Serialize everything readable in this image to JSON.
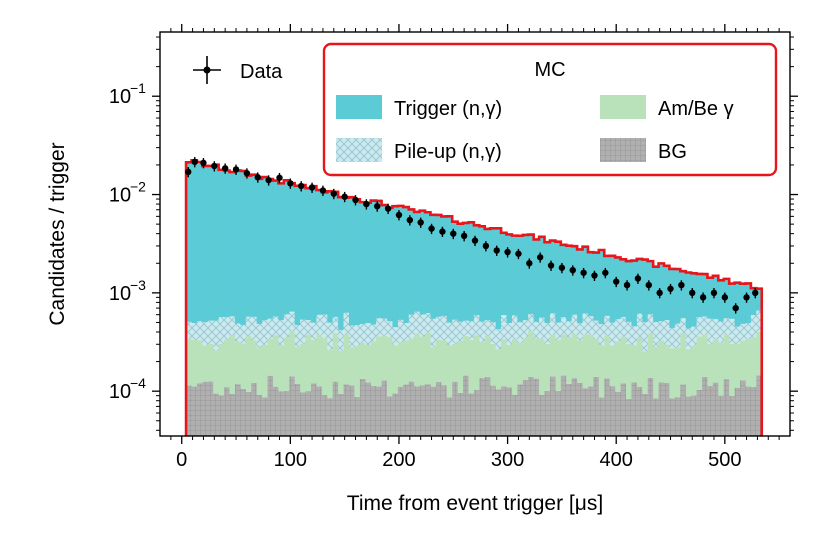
{
  "chart_data": {
    "type": "histogram",
    "xlabel": "Time from event trigger [μs]",
    "ylabel": "Candidates / trigger",
    "xlim": [
      -20,
      560
    ],
    "ylim": [
      3.5e-05,
      0.45
    ],
    "yscale": "log",
    "x_ticks": [
      0,
      100,
      200,
      300,
      400,
      500
    ],
    "x_tick_labels": [
      "0",
      "100",
      "200",
      "300",
      "400",
      "500"
    ],
    "y_ticks": [
      0.0001,
      0.001,
      0.01,
      0.1
    ],
    "y_tick_labels": [
      "10",
      "10",
      "10",
      "10"
    ],
    "y_tick_exponents": [
      "−4",
      "−3",
      "−2",
      "−1"
    ],
    "bin_edges_range": [
      4,
      534
    ],
    "bin_width": 5,
    "stack_order": [
      "BG",
      "Am/Be γ",
      "Pile-up (n,γ)",
      "Trigger (n,γ)"
    ],
    "series": [
      {
        "name": "BG",
        "color": "#b0b0b0",
        "hatch": "grid",
        "model": "constant",
        "level": 0.000115
      },
      {
        "name": "Am/Be γ",
        "color": "#b9e2bb",
        "model": "constant",
        "level": 0.00022
      },
      {
        "name": "Pile-up (n,γ)",
        "color": "#c7ecef",
        "hatch": "cross",
        "model": "constant",
        "level": 0.00021
      },
      {
        "name": "Trigger (n,γ)",
        "color": "#5bcbd6",
        "model": "exponential",
        "total_at_10us": 0.0215,
        "total_at_530us": 0.00115
      }
    ],
    "total_mc_line_color": "#e8151b",
    "data": {
      "name": "Data",
      "points": [
        [
          6,
          0.017
        ],
        [
          12,
          0.0215
        ],
        [
          20,
          0.021
        ],
        [
          30,
          0.0195
        ],
        [
          40,
          0.0185
        ],
        [
          50,
          0.018
        ],
        [
          60,
          0.0165
        ],
        [
          70,
          0.015
        ],
        [
          80,
          0.014
        ],
        [
          90,
          0.0148
        ],
        [
          100,
          0.013
        ],
        [
          110,
          0.0122
        ],
        [
          120,
          0.0118
        ],
        [
          130,
          0.011
        ],
        [
          140,
          0.0102
        ],
        [
          150,
          0.0095
        ],
        [
          160,
          0.0088
        ],
        [
          170,
          0.008
        ],
        [
          180,
          0.0076
        ],
        [
          190,
          0.0072
        ],
        [
          200,
          0.0062
        ],
        [
          210,
          0.0055
        ],
        [
          220,
          0.0052
        ],
        [
          230,
          0.0045
        ],
        [
          240,
          0.0042
        ],
        [
          250,
          0.004
        ],
        [
          260,
          0.0038
        ],
        [
          270,
          0.0034
        ],
        [
          280,
          0.003
        ],
        [
          290,
          0.0027
        ],
        [
          300,
          0.0026
        ],
        [
          310,
          0.0025
        ],
        [
          320,
          0.002
        ],
        [
          330,
          0.0023
        ],
        [
          340,
          0.0019
        ],
        [
          350,
          0.0018
        ],
        [
          360,
          0.0017
        ],
        [
          370,
          0.0016
        ],
        [
          380,
          0.0015
        ],
        [
          390,
          0.0016
        ],
        [
          400,
          0.0013
        ],
        [
          410,
          0.0012
        ],
        [
          420,
          0.0014
        ],
        [
          430,
          0.0012
        ],
        [
          440,
          0.001
        ],
        [
          450,
          0.0011
        ],
        [
          460,
          0.0012
        ],
        [
          470,
          0.001
        ],
        [
          480,
          0.0009
        ],
        [
          490,
          0.001
        ],
        [
          500,
          0.0009
        ],
        [
          510,
          0.0007
        ],
        [
          520,
          0.0009
        ],
        [
          528,
          0.001
        ]
      ],
      "error_rel": 0.12
    },
    "legend": {
      "data_label": "Data",
      "mc_title": "MC",
      "mc_entries": [
        "Trigger (n,γ)",
        "Am/Be γ",
        "Pile-up (n,γ)",
        "BG"
      ]
    }
  }
}
